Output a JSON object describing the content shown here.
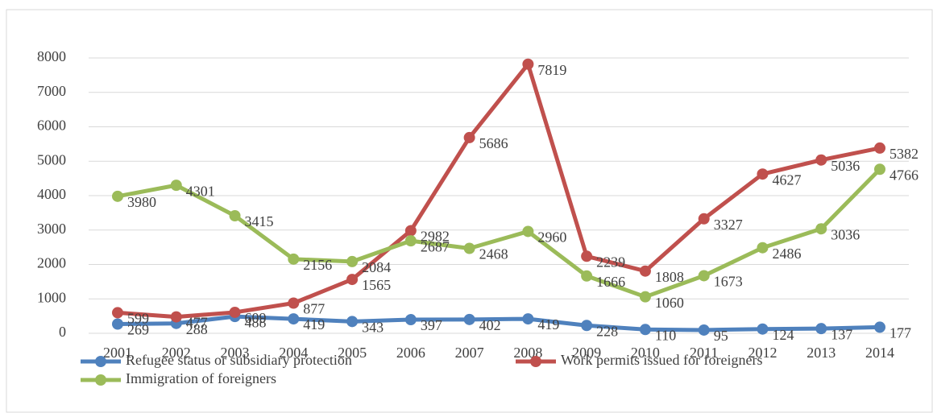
{
  "chart_data": {
    "type": "line",
    "categories": [
      "2001",
      "2002",
      "2003",
      "2004",
      "2005",
      "2006",
      "2007",
      "2008",
      "2009",
      "2010",
      "2011",
      "2012",
      "2013",
      "2014"
    ],
    "series": [
      {
        "name": "Refugee status or subsidiary protection",
        "color": "#4f81bd",
        "values": [
          269,
          288,
          488,
          419,
          343,
          397,
          402,
          419,
          228,
          110,
          95,
          124,
          137,
          177
        ]
      },
      {
        "name": "Work permits issued for foreigners",
        "color": "#c0504d",
        "values": [
          599,
          477,
          609,
          877,
          1565,
          2982,
          5686,
          7819,
          2239,
          1808,
          3327,
          4627,
          5036,
          5382
        ]
      },
      {
        "name": "Immigration of foreigners",
        "color": "#9bbb59",
        "values": [
          3980,
          4301,
          3415,
          2156,
          2084,
          2687,
          2468,
          2960,
          1666,
          1060,
          1673,
          2486,
          3036,
          4766
        ]
      }
    ],
    "ylim": [
      0,
      8000
    ],
    "yticks": [
      0,
      1000,
      2000,
      3000,
      4000,
      5000,
      6000,
      7000,
      8000
    ],
    "grid": true,
    "legend": "bottom"
  }
}
